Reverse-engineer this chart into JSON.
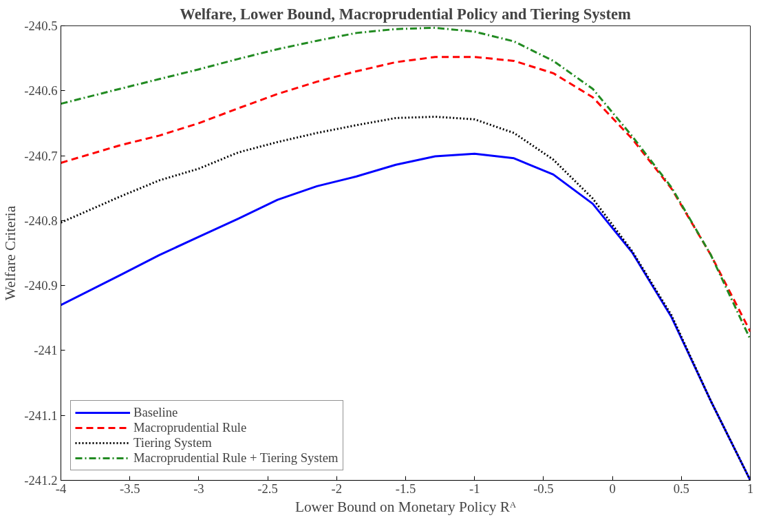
{
  "chart_data": {
    "type": "line",
    "title": "Welfare, Lower Bound, Macroprudential Policy and Tiering System",
    "xlabel": "Lower Bound on Monetary Policy Rᴬ",
    "ylabel": "Welfare Criteria",
    "x": [
      -4,
      -3.571,
      -3.286,
      -3,
      -2.714,
      -2.429,
      -2.143,
      -1.857,
      -1.571,
      -1.286,
      -1,
      -0.714,
      -0.429,
      -0.143,
      0.143,
      0.429,
      0.714,
      1
    ],
    "series": [
      {
        "name": "Baseline",
        "color": "#0000ff",
        "line_style": "solid",
        "values": [
          -240.93,
          -240.884,
          -240.853,
          -240.825,
          -240.797,
          -240.768,
          -240.747,
          -240.732,
          -240.714,
          -240.701,
          -240.697,
          -240.704,
          -240.729,
          -240.774,
          -240.849,
          -240.949,
          -241.078,
          -241.2
        ]
      },
      {
        "name": "Macroprudential Rule",
        "color": "#ff0000",
        "line_style": "dashed",
        "values": [
          -240.711,
          -240.684,
          -240.669,
          -240.65,
          -240.627,
          -240.605,
          -240.586,
          -240.57,
          -240.556,
          -240.548,
          -240.548,
          -240.554,
          -240.573,
          -240.61,
          -240.674,
          -240.751,
          -240.853,
          -240.971
        ]
      },
      {
        "name": "Tiering System",
        "color": "#000000",
        "line_style": "dotted",
        "values": [
          -240.803,
          -240.763,
          -240.738,
          -240.72,
          -240.695,
          -240.679,
          -240.665,
          -240.653,
          -240.642,
          -240.64,
          -240.644,
          -240.665,
          -240.706,
          -240.766,
          -240.847,
          -240.946,
          -241.078,
          -241.2
        ]
      },
      {
        "name": "Macroprudential Rule + Tiering System",
        "color": "#228b22",
        "line_style": "dashdot",
        "values": [
          -240.62,
          -240.597,
          -240.582,
          -240.567,
          -240.551,
          -240.536,
          -240.523,
          -240.511,
          -240.505,
          -240.503,
          -240.509,
          -240.524,
          -240.554,
          -240.597,
          -240.67,
          -240.749,
          -240.853,
          -240.983
        ]
      }
    ],
    "xlim": [
      -4,
      1
    ],
    "ylim": [
      -241.2,
      -240.5
    ],
    "xticks": [
      -4,
      -3.5,
      -3,
      -2.5,
      -2,
      -1.5,
      -1,
      -0.5,
      0,
      0.5,
      1
    ],
    "yticks": [
      -241.2,
      -241.1,
      -241,
      -240.9,
      -240.8,
      -240.7,
      -240.6,
      -240.5
    ],
    "grid": false,
    "legend": "bottom left"
  }
}
